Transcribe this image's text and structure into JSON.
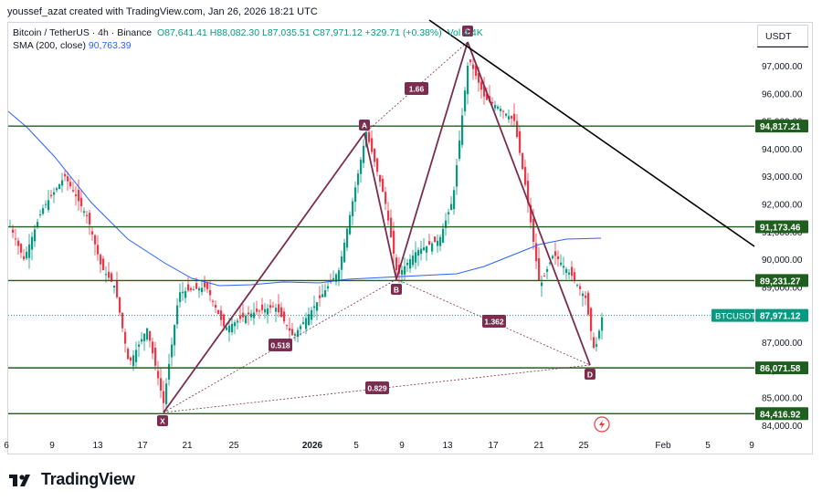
{
  "header": {
    "caption": "youssef_azat created with TradingView.com, Jan 26, 2026 18:21 UTC"
  },
  "legend": {
    "symbol": "Bitcoin / TetherUS · 4h · Binance",
    "ohlc": "O87,641.41  H88,082.30  L87,035.51  C87,971.12  +329.71 (+0.38%)",
    "vol": "Vol 4.4K",
    "sma_label": "SMA (200, close)",
    "sma_value": "90,763.39"
  },
  "price_scale": {
    "currency": "USDT",
    "ticks": [
      "97,000.00",
      "96,000.00",
      "95,000.00",
      "94,000.00",
      "93,000.00",
      "92,000.00",
      "91,000.00",
      "90,000.00",
      "89,000.00",
      "88,000.00",
      "87,000.00",
      "86,000.00",
      "85,000.00",
      "84,000.00"
    ],
    "levels": [
      "94,817.21",
      "91,173.46",
      "89,231.27",
      "86,071.58",
      "84,416.92"
    ],
    "current_label": "BTCUSDT",
    "current_price": "87,971.12"
  },
  "time_axis": [
    "6",
    "9",
    "13",
    "17",
    "21",
    "25",
    "2026",
    "5",
    "9",
    "13",
    "17",
    "21",
    "25",
    "Feb",
    "5",
    "9"
  ],
  "pattern": {
    "points": [
      "X",
      "A",
      "B",
      "C",
      "D"
    ],
    "ratios": [
      "1.66",
      "0.518",
      "1.362",
      "0.829"
    ]
  },
  "branding": {
    "name": "TradingView"
  },
  "colors": {
    "up": "#089981",
    "down": "#f23645",
    "sma": "#2962ff",
    "level": "#1e5e1e",
    "pattern": "#7b2d4f",
    "trend": "#000000"
  }
}
